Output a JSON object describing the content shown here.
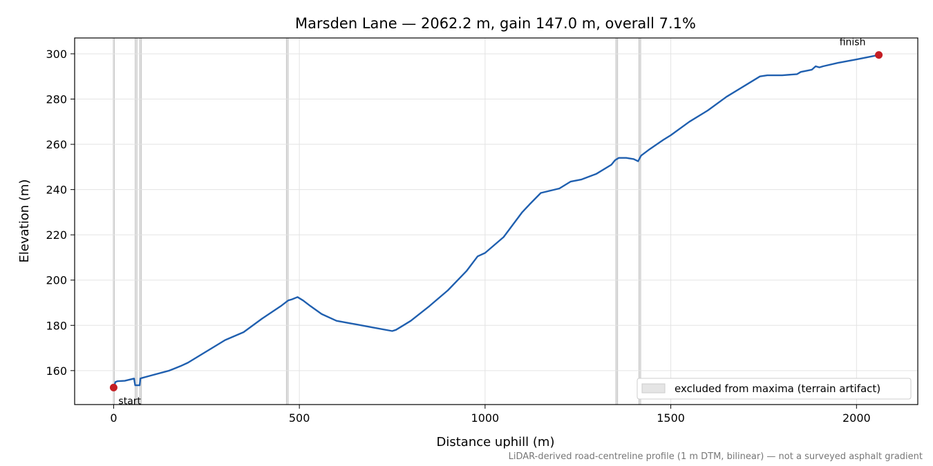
{
  "chart_data": {
    "type": "line",
    "title": "Marsden Lane — 2062.2 m, gain 147.0 m, overall 7.1%",
    "xlabel": "Distance uphill (m)",
    "ylabel": "Elevation (m)",
    "xlim": [
      -105,
      2165
    ],
    "ylim": [
      145,
      307
    ],
    "x_ticks": [
      0,
      500,
      1000,
      1500,
      2000
    ],
    "x_tick_labels": [
      "0",
      "500",
      "1000",
      "1500",
      "2000"
    ],
    "y_ticks": [
      160,
      180,
      200,
      220,
      240,
      260,
      280,
      300
    ],
    "y_tick_labels": [
      "160",
      "180",
      "200",
      "220",
      "240",
      "260",
      "280",
      "300"
    ],
    "grid": true,
    "legend_position": "lower-right",
    "legend_label": "excluded from maxima (terrain artifact)",
    "footnote": "LiDAR-derived road-centreline profile (1 m DTM, bilinear) — not a surveyed asphalt gradient",
    "line_color": "#1f5faf",
    "marker_color": "#c41e24",
    "band_color": "#cccccc",
    "excluded_bands": [
      [
        -1,
        2
      ],
      [
        58,
        63
      ],
      [
        70,
        75
      ],
      [
        465,
        470
      ],
      [
        1352,
        1357
      ],
      [
        1414,
        1419
      ]
    ],
    "series": [
      {
        "x": [
          0,
          5,
          10,
          30,
          55,
          58,
          60,
          70,
          72,
          75,
          100,
          150,
          180,
          200,
          250,
          300,
          350,
          400,
          450,
          470,
          480,
          495,
          510,
          530,
          560,
          600,
          650,
          700,
          750,
          760,
          780,
          800,
          850,
          900,
          950,
          980,
          1000,
          1050,
          1100,
          1120,
          1150,
          1200,
          1230,
          1260,
          1300,
          1340,
          1350,
          1360,
          1380,
          1400,
          1412,
          1420,
          1440,
          1480,
          1500,
          1550,
          1600,
          1650,
          1700,
          1740,
          1760,
          1800,
          1840,
          1850,
          1880,
          1890,
          1900,
          1910,
          1950,
          2000,
          2060
        ],
        "y": [
          152.5,
          155.0,
          155.3,
          155.5,
          156.5,
          153.5,
          153.5,
          153.5,
          156.5,
          156.7,
          157.8,
          160.0,
          162.0,
          163.5,
          168.5,
          173.5,
          177.0,
          183.0,
          188.5,
          191.0,
          191.5,
          192.5,
          191.0,
          188.5,
          185.0,
          182.0,
          180.5,
          179.0,
          177.5,
          178.0,
          180.0,
          182.0,
          188.5,
          195.5,
          204.0,
          210.5,
          212.0,
          219.0,
          230.0,
          233.5,
          238.5,
          240.5,
          243.5,
          244.5,
          247.0,
          251.0,
          253.0,
          254.0,
          254.0,
          253.5,
          252.5,
          255.0,
          257.5,
          262.0,
          264.0,
          270.0,
          275.0,
          281.0,
          286.0,
          290.0,
          290.5,
          290.5,
          291.0,
          292.0,
          293.0,
          294.5,
          294.0,
          294.5,
          296.0,
          297.5,
          299.5
        ]
      }
    ],
    "start_point": {
      "x": 0,
      "y": 152.5,
      "label": "start"
    },
    "finish_point": {
      "x": 2060,
      "y": 299.5,
      "label": "finish"
    }
  }
}
